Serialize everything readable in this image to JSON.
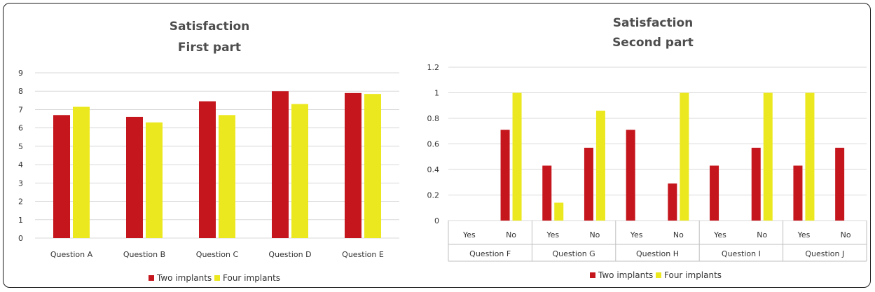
{
  "chart_data": [
    {
      "type": "bar",
      "title": "Satisfaction",
      "subtitle": "First part",
      "categories": [
        "Question A",
        "Question B",
        "Question C",
        "Question D",
        "Question E"
      ],
      "series": [
        {
          "name": "Two implants",
          "values": [
            6.7,
            6.6,
            7.45,
            8.0,
            7.9
          ],
          "color": "#c4161c"
        },
        {
          "name": "Four implants",
          "values": [
            7.15,
            6.3,
            6.7,
            7.3,
            7.85
          ],
          "color": "#ece81f"
        }
      ],
      "ylim": [
        0,
        9
      ],
      "yticks": [
        "0",
        "1",
        "2",
        "3",
        "4",
        "5",
        "6",
        "7",
        "8",
        "9"
      ],
      "grid": true,
      "legend": "bottom"
    },
    {
      "type": "bar",
      "title": "Satisfaction",
      "subtitle": "Second part",
      "groups": [
        "Question F",
        "Question G",
        "Question H",
        "Question I",
        "Question J"
      ],
      "categories": [
        "Yes",
        "No",
        "Yes",
        "No",
        "Yes",
        "No",
        "Yes",
        "No",
        "Yes",
        "No"
      ],
      "series": [
        {
          "name": "Two implants",
          "values": [
            0,
            0.71,
            0.43,
            0.57,
            0.71,
            0.29,
            0.43,
            0.57,
            0.43,
            0.57
          ],
          "color": "#c4161c"
        },
        {
          "name": "Four implants",
          "values": [
            0,
            1.0,
            0.14,
            0.86,
            0,
            1.0,
            0,
            1.0,
            1.0,
            0
          ],
          "color": "#ece81f"
        }
      ],
      "ylim": [
        0,
        1.2
      ],
      "yticks": [
        "0",
        "0.2",
        "0.4",
        "0.6",
        "0.8",
        "1",
        "1.2"
      ],
      "grid": true,
      "legend": "bottom"
    }
  ]
}
